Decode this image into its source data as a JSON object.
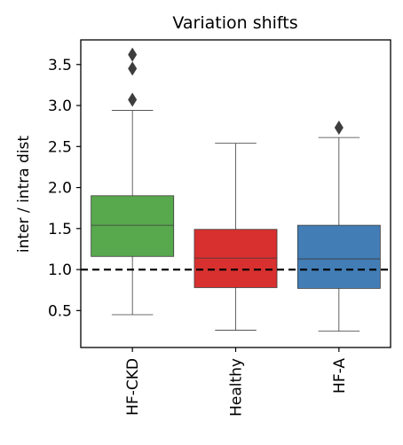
{
  "chart_data": {
    "type": "box",
    "title": "Variation shifts",
    "xlabel": "",
    "ylabel": "inter / intra dist",
    "ylim": [
      0.05,
      3.8
    ],
    "yticks": [
      0.5,
      1.0,
      1.5,
      2.0,
      2.5,
      3.0,
      3.5
    ],
    "ytick_labels": [
      "0.5",
      "1.0",
      "1.5",
      "2.0",
      "2.5",
      "3.0",
      "3.5"
    ],
    "reference_line": {
      "y": 1.0,
      "style": "dashed",
      "color": "#000000"
    },
    "grid": false,
    "legend": "none",
    "categories": [
      "HF-CKD",
      "Healthy",
      "HF-A"
    ],
    "boxes": [
      {
        "name": "HF-CKD",
        "color": "#58a84e",
        "whisker_low": 0.45,
        "q1": 1.16,
        "median": 1.54,
        "q3": 1.9,
        "whisker_high": 2.94,
        "outliers": [
          3.07,
          3.45,
          3.62
        ]
      },
      {
        "name": "Healthy",
        "color": "#d7302f",
        "whisker_low": 0.26,
        "q1": 0.78,
        "median": 1.14,
        "q3": 1.49,
        "whisker_high": 2.54,
        "outliers": []
      },
      {
        "name": "HF-A",
        "color": "#427db6",
        "whisker_low": 0.25,
        "q1": 0.77,
        "median": 1.13,
        "q3": 1.54,
        "whisker_high": 2.61,
        "outliers": [
          2.73
        ]
      }
    ]
  }
}
